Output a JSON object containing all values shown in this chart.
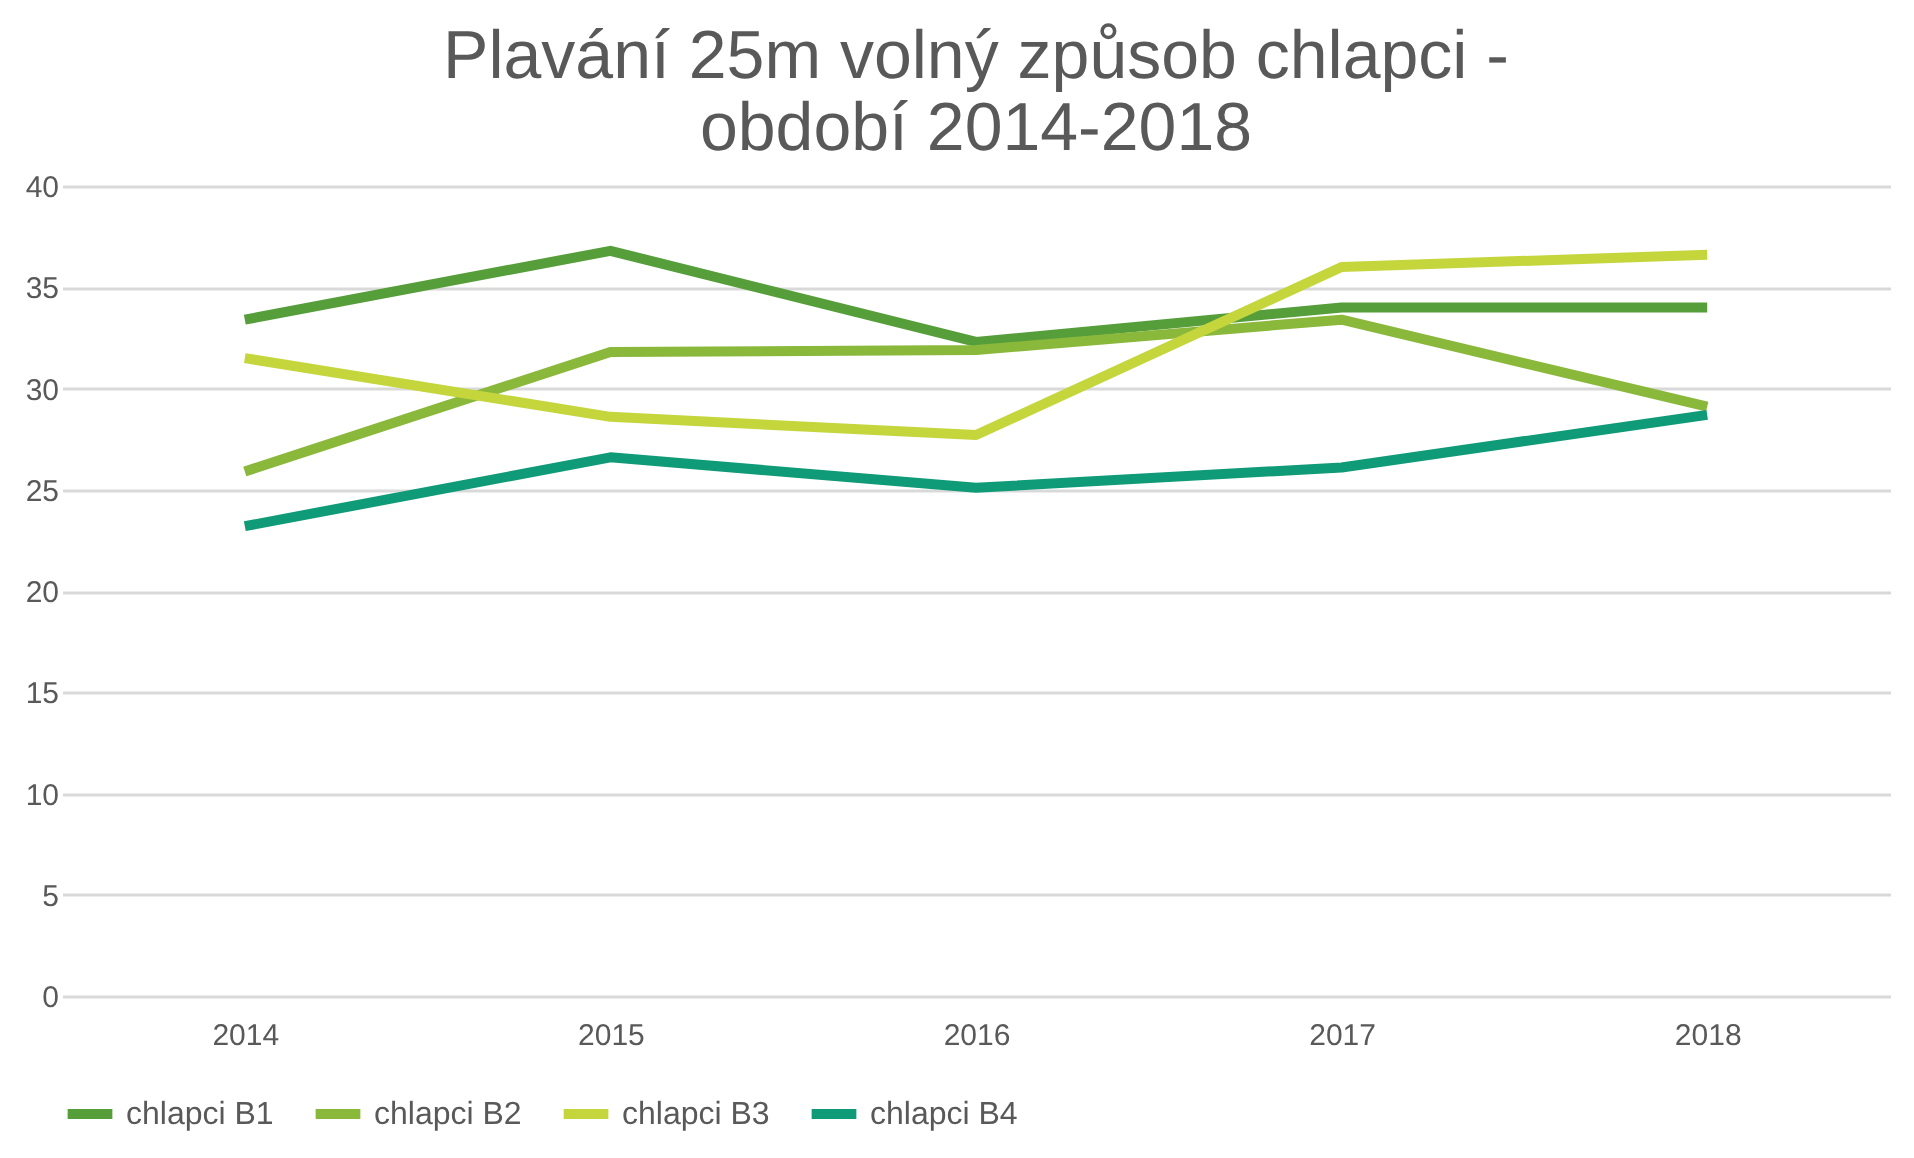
{
  "chart_data": {
    "type": "line",
    "title": [
      "Plavání 25m volný způsob chlapci -",
      "období 2014-2018"
    ],
    "categories": [
      "2014",
      "2015",
      "2016",
      "2017",
      "2018"
    ],
    "series": [
      {
        "name": "chlapci B1",
        "color": "#559e3a",
        "values": [
          33.4,
          36.8,
          32.3,
          34.0,
          34.0
        ]
      },
      {
        "name": "chlapci B2",
        "color": "#8ab83a",
        "values": [
          25.9,
          31.8,
          31.9,
          33.4,
          29.1
        ]
      },
      {
        "name": "chlapci B3",
        "color": "#c5d63d",
        "values": [
          31.5,
          28.6,
          27.7,
          36.0,
          36.6
        ]
      },
      {
        "name": "chlapci B4",
        "color": "#0f9a78",
        "values": [
          23.2,
          26.6,
          25.1,
          26.1,
          28.7
        ]
      }
    ],
    "ylim": [
      0,
      40
    ],
    "yticks": [
      0,
      5,
      10,
      15,
      20,
      25,
      30,
      35,
      40
    ],
    "grid": "y",
    "legend": "bottom",
    "marker": "none",
    "line_style": "solid"
  }
}
